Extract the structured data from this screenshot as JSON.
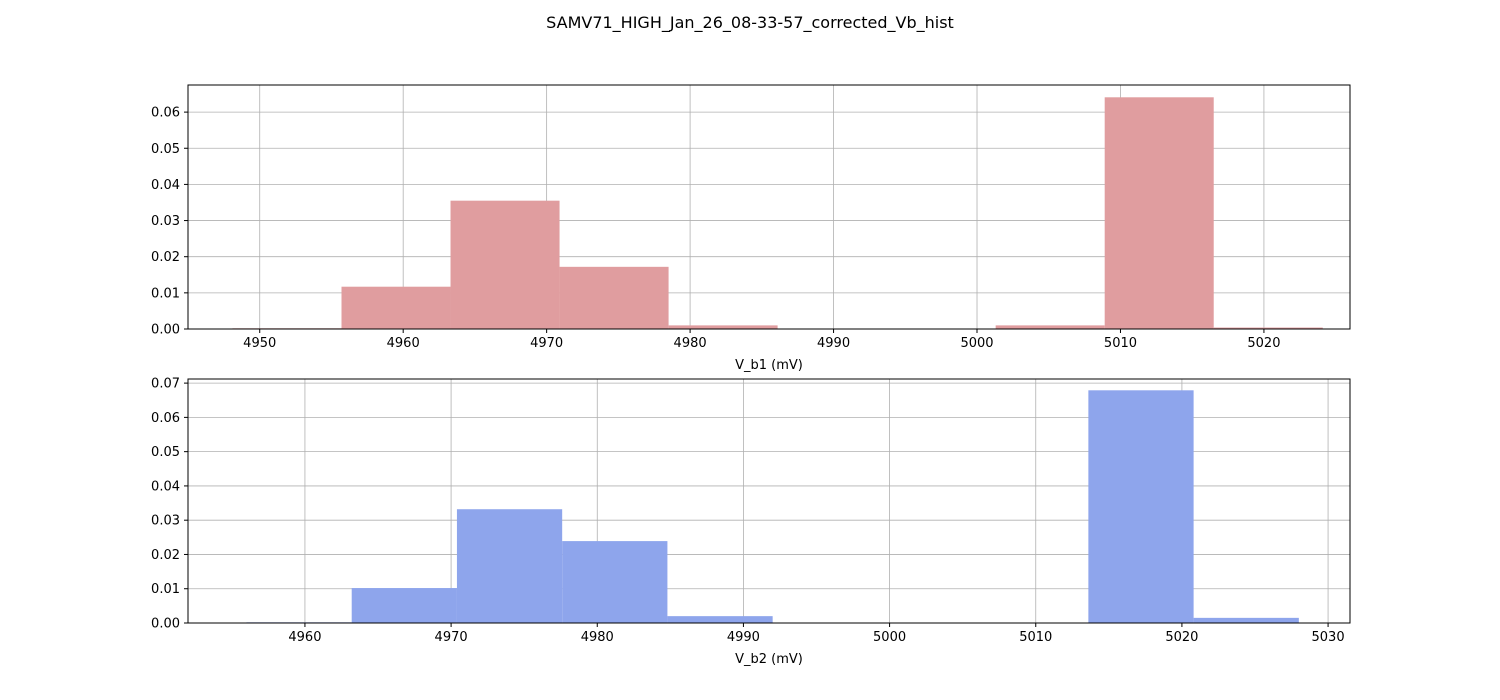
{
  "figure": {
    "title": "SAMV71_HIGH_Jan_26_08-33-57_corrected_Vb_hist"
  },
  "chart_data": [
    {
      "type": "bar",
      "subtype": "histogram",
      "xlabel": "V_b1 (mV)",
      "ylabel": "",
      "color": "#e09d9f",
      "grid": true,
      "xlim": [
        4945,
        5026
      ],
      "ylim": [
        0,
        0.0675
      ],
      "xticks": [
        4950,
        4960,
        4970,
        4980,
        4990,
        5000,
        5010,
        5020
      ],
      "xtick_labels": [
        "4950",
        "4960",
        "4970",
        "4980",
        "4990",
        "5000",
        "5010",
        "5020"
      ],
      "yticks": [
        0.0,
        0.01,
        0.02,
        0.03,
        0.04,
        0.05,
        0.06
      ],
      "ytick_labels": [
        "0.00",
        "0.01",
        "0.02",
        "0.03",
        "0.04",
        "0.05",
        "0.06"
      ],
      "bin_edges": [
        4948.1,
        4955.7,
        4963.3,
        4970.9,
        4978.5,
        4986.1,
        4993.7,
        5001.3,
        5008.9,
        5016.5,
        5024.1
      ],
      "values": [
        0.0002,
        0.0117,
        0.0355,
        0.0172,
        0.001,
        0.0,
        0.0,
        0.001,
        0.0641,
        0.0004
      ]
    },
    {
      "type": "bar",
      "subtype": "histogram",
      "xlabel": "V_b2 (mV)",
      "ylabel": "",
      "color": "#8ea5ec",
      "grid": true,
      "xlim": [
        4952,
        5031.5
      ],
      "ylim": [
        0,
        0.0712
      ],
      "xticks": [
        4960,
        4970,
        4980,
        4990,
        5000,
        5010,
        5020,
        5030
      ],
      "xtick_labels": [
        "4960",
        "4970",
        "4980",
        "4990",
        "5000",
        "5010",
        "5020",
        "5030"
      ],
      "yticks": [
        0.0,
        0.01,
        0.02,
        0.03,
        0.04,
        0.05,
        0.06,
        0.07
      ],
      "ytick_labels": [
        "0.00",
        "0.01",
        "0.02",
        "0.03",
        "0.04",
        "0.05",
        "0.06",
        "0.07"
      ],
      "bin_edges": [
        4956.0,
        4963.2,
        4970.4,
        4977.6,
        4984.8,
        4992.0,
        4999.2,
        5006.4,
        5013.6,
        5020.8,
        5028.0
      ],
      "values": [
        0.0002,
        0.0102,
        0.0332,
        0.0239,
        0.002,
        0.0,
        0.0,
        0.0,
        0.0679,
        0.0015
      ]
    }
  ]
}
